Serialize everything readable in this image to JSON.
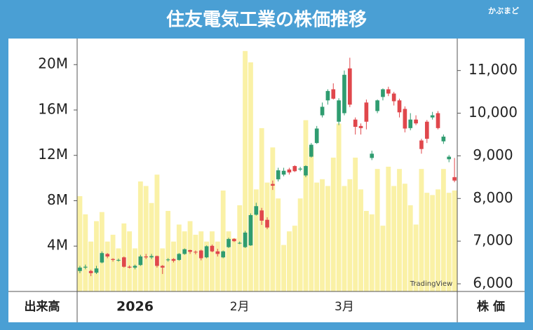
{
  "brand": "かぶまど",
  "chart_data": {
    "type": "candlestick",
    "title": "住友電気工業の株価推移",
    "categories": [
      null,
      null,
      null,
      null,
      null,
      null,
      null,
      null,
      null,
      null,
      "2026",
      null,
      null,
      null,
      null,
      null,
      null,
      null,
      null,
      null,
      null,
      null,
      null,
      null,
      null,
      null,
      null,
      null,
      null,
      "2月",
      null,
      null,
      null,
      null,
      null,
      null,
      null,
      null,
      null,
      null,
      null,
      null,
      null,
      null,
      null,
      null,
      null,
      null,
      "3月",
      null,
      null,
      null,
      null,
      null,
      null,
      null,
      null,
      null,
      null,
      null,
      null,
      null,
      null,
      null,
      null,
      null,
      null,
      null,
      null
    ],
    "open": [
      6300,
      6380,
      6300,
      6260,
      6500,
      6700,
      6580,
      6560,
      6620,
      6400,
      6380,
      6440,
      6640,
      6620,
      6650,
      6420,
      6560,
      6580,
      6560,
      6700,
      6790,
      6750,
      6780,
      6620,
      6890,
      6760,
      6620,
      6860,
      7050,
      6950,
      6860,
      6900,
      7620,
      7720,
      7500,
      8340,
      8450,
      8560,
      8680,
      8760,
      8680,
      8540,
      8980,
      9300,
      9950,
      10300,
      10560,
      9800,
      10000,
      11050,
      9850,
      9700,
      10250,
      8950,
      10050,
      10380,
      10560,
      10460,
      10300,
      10100,
      9650,
      9850,
      9360,
      9800,
      9900,
      10000,
      9340,
      8920,
      8500
    ],
    "high": [
      6420,
      6450,
      6330,
      6420,
      6760,
      6720,
      6600,
      6590,
      6640,
      6430,
      6450,
      6680,
      6700,
      6700,
      6660,
      6440,
      6600,
      6600,
      6720,
      6830,
      6800,
      6780,
      6800,
      6900,
      6920,
      6820,
      6780,
      7080,
      7070,
      6990,
      7240,
      7650,
      7900,
      7780,
      7560,
      8420,
      8720,
      8720,
      8720,
      8780,
      8740,
      8780,
      9300,
      9700,
      10250,
      10560,
      10700,
      10350,
      11000,
      11300,
      9900,
      9760,
      10320,
      9120,
      10320,
      10580,
      10620,
      10500,
      10340,
      10160,
      10000,
      9950,
      9400,
      9840,
      10030,
      10050,
      9500,
      9020,
      8950
    ],
    "low": [
      6250,
      6340,
      6180,
      6230,
      6480,
      6600,
      6520,
      6520,
      6380,
      6360,
      6340,
      6420,
      6580,
      6580,
      6380,
      6230,
      6520,
      6500,
      6540,
      6680,
      6700,
      6690,
      6550,
      6600,
      6740,
      6640,
      6600,
      6840,
      6980,
      6930,
      6840,
      6890,
      7600,
      7380,
      7280,
      8200,
      8400,
      8520,
      8560,
      8620,
      8640,
      8500,
      8960,
      9280,
      9900,
      10200,
      10320,
      9720,
      9950,
      10140,
      9500,
      9500,
      9620,
      8900,
      10000,
      10300,
      10400,
      10180,
      9900,
      9550,
      9600,
      9720,
      9050,
      9300,
      9850,
      9620,
      9280,
      8850,
      8380
    ],
    "close": [
      6380,
      6400,
      6250,
      6360,
      6720,
      6640,
      6560,
      6560,
      6400,
      6380,
      6420,
      6640,
      6620,
      6650,
      6420,
      6380,
      6570,
      6540,
      6700,
      6810,
      6750,
      6740,
      6600,
      6880,
      6760,
      6700,
      6760,
      7050,
      7000,
      6960,
      7200,
      7610,
      7820,
      7480,
      7320,
      8300,
      8660,
      8650,
      8610,
      8640,
      8700,
      8760,
      9260,
      9640,
      10150,
      10520,
      10340,
      10300,
      10900,
      10200,
      9680,
      9650,
      9800,
      9050,
      10300,
      10560,
      10460,
      10280,
      10020,
      9640,
      9850,
      9760,
      9160,
      9400,
      9950,
      9650,
      9450,
      8980,
      8420
    ],
    "volume": [
      8400000,
      6800000,
      4400000,
      6200000,
      7000000,
      4400000,
      5000000,
      3800000,
      6000000,
      5300000,
      3800000,
      9700000,
      9300000,
      7800000,
      10300000,
      3800000,
      7100000,
      4400000,
      5900000,
      5300000,
      6200000,
      5000000,
      5300000,
      4400000,
      5300000,
      4400000,
      8900000,
      5300000,
      4700000,
      7600000,
      21200000,
      20200000,
      9000000,
      14400000,
      9600000,
      12700000,
      8200000,
      4100000,
      5300000,
      5800000,
      8200000,
      15100000,
      12700000,
      9600000,
      9900000,
      9300000,
      11800000,
      14800000,
      9300000,
      9900000,
      11800000,
      9000000,
      7100000,
      6800000,
      10800000,
      5800000,
      11000000,
      9300000,
      10800000,
      9500000,
      7600000,
      5900000,
      10800000,
      8700000,
      8500000,
      9000000,
      10800000,
      8700000,
      8900000
    ],
    "up_color": "#2f9c70",
    "down_color": "#e0474c",
    "volume_color": "#faf1a6",
    "ylabel": "出来高",
    "y2label": "株 価",
    "watermark": "TradingView",
    "ylim": [
      0,
      22300000
    ],
    "yticks": [
      {
        "value": 4000000,
        "label": "4M"
      },
      {
        "value": 8000000,
        "label": "8M"
      },
      {
        "value": 12000000,
        "label": "12M"
      },
      {
        "value": 16000000,
        "label": "16M"
      },
      {
        "value": 20000000,
        "label": "20M"
      }
    ],
    "y2lim": [
      5820,
      11750
    ],
    "y2ticks": [
      {
        "value": 6000,
        "label": "6,000"
      },
      {
        "value": 7000,
        "label": "7,000"
      },
      {
        "value": 8000,
        "label": "8,000"
      },
      {
        "value": 9000,
        "label": "9,000"
      },
      {
        "value": 10000,
        "label": "10,000"
      },
      {
        "value": 11000,
        "label": "11,000"
      }
    ]
  }
}
